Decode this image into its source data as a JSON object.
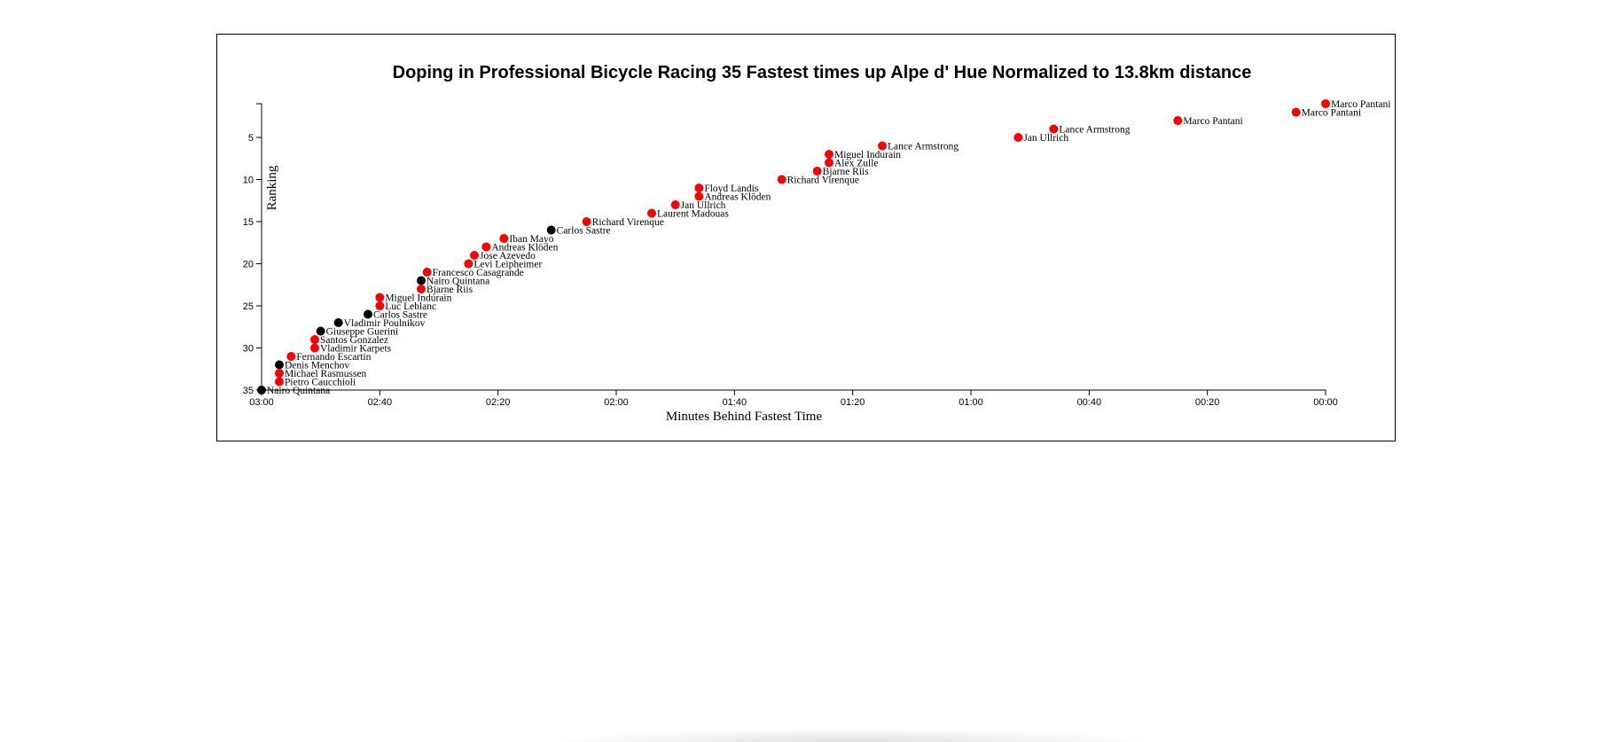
{
  "chart_data": {
    "type": "scatter",
    "title": "Doping in Professional Bicycle Racing 35 Fastest times up Alpe d' Hue Normalized to 13.8km distance",
    "xlabel": "Minutes Behind Fastest Time",
    "ylabel": "Ranking",
    "x_unit": "seconds behind fastest time",
    "xlim": [
      180,
      0
    ],
    "ylim": [
      1,
      35
    ],
    "x_ticks": [
      {
        "value": 180,
        "label": "03:00"
      },
      {
        "value": 160,
        "label": "02:40"
      },
      {
        "value": 140,
        "label": "02:20"
      },
      {
        "value": 120,
        "label": "02:00"
      },
      {
        "value": 100,
        "label": "01:40"
      },
      {
        "value": 80,
        "label": "01:20"
      },
      {
        "value": 60,
        "label": "01:00"
      },
      {
        "value": 40,
        "label": "00:40"
      },
      {
        "value": 20,
        "label": "00:20"
      },
      {
        "value": 0,
        "label": "00:00"
      }
    ],
    "y_ticks": [
      5,
      10,
      15,
      20,
      25,
      30,
      35
    ],
    "colors": {
      "doping": "#ff0000",
      "no_doping": "#000000"
    },
    "points": [
      {
        "rank": 1,
        "seconds_behind": 0,
        "name": "Marco Pantani",
        "doping": true
      },
      {
        "rank": 2,
        "seconds_behind": 5,
        "name": "Marco Pantani",
        "doping": true
      },
      {
        "rank": 3,
        "seconds_behind": 25,
        "name": "Marco Pantani",
        "doping": true
      },
      {
        "rank": 4,
        "seconds_behind": 46,
        "name": "Lance Armstrong",
        "doping": true
      },
      {
        "rank": 5,
        "seconds_behind": 52,
        "name": "Jan Ullrich",
        "doping": true
      },
      {
        "rank": 6,
        "seconds_behind": 75,
        "name": "Lance Armstrong",
        "doping": true
      },
      {
        "rank": 7,
        "seconds_behind": 84,
        "name": "Miguel Indurain",
        "doping": true
      },
      {
        "rank": 8,
        "seconds_behind": 84,
        "name": "Alex Zulle",
        "doping": true
      },
      {
        "rank": 9,
        "seconds_behind": 86,
        "name": "Bjarne Riis",
        "doping": true
      },
      {
        "rank": 10,
        "seconds_behind": 92,
        "name": "Richard Virenque",
        "doping": true
      },
      {
        "rank": 11,
        "seconds_behind": 106,
        "name": "Floyd Landis",
        "doping": true
      },
      {
        "rank": 12,
        "seconds_behind": 106,
        "name": "Andreas Klöden",
        "doping": true
      },
      {
        "rank": 13,
        "seconds_behind": 110,
        "name": "Jan Ullrich",
        "doping": true
      },
      {
        "rank": 14,
        "seconds_behind": 114,
        "name": "Laurent Madouas",
        "doping": true
      },
      {
        "rank": 15,
        "seconds_behind": 125,
        "name": "Richard Virenque",
        "doping": true
      },
      {
        "rank": 16,
        "seconds_behind": 131,
        "name": "Carlos Sastre",
        "doping": false
      },
      {
        "rank": 17,
        "seconds_behind": 139,
        "name": "Iban Mayo",
        "doping": true
      },
      {
        "rank": 18,
        "seconds_behind": 142,
        "name": "Andreas Klöden",
        "doping": true
      },
      {
        "rank": 19,
        "seconds_behind": 144,
        "name": "Jose Azevedo",
        "doping": true
      },
      {
        "rank": 20,
        "seconds_behind": 145,
        "name": "Levi Leipheimer",
        "doping": true
      },
      {
        "rank": 21,
        "seconds_behind": 152,
        "name": "Francesco Casagrande",
        "doping": true
      },
      {
        "rank": 22,
        "seconds_behind": 153,
        "name": "Nairo Quintana",
        "doping": false
      },
      {
        "rank": 23,
        "seconds_behind": 153,
        "name": "Bjarne Riis",
        "doping": true
      },
      {
        "rank": 24,
        "seconds_behind": 160,
        "name": "Miguel Indurain",
        "doping": true
      },
      {
        "rank": 25,
        "seconds_behind": 160,
        "name": "Luc Leblanc",
        "doping": true
      },
      {
        "rank": 26,
        "seconds_behind": 162,
        "name": "Carlos Sastre",
        "doping": false
      },
      {
        "rank": 27,
        "seconds_behind": 167,
        "name": "Vladimir Poulnikov",
        "doping": false
      },
      {
        "rank": 28,
        "seconds_behind": 170,
        "name": "Giuseppe Guerini",
        "doping": false
      },
      {
        "rank": 29,
        "seconds_behind": 171,
        "name": "Santos Gonzalez",
        "doping": true
      },
      {
        "rank": 30,
        "seconds_behind": 171,
        "name": "Vladimir Karpets",
        "doping": true
      },
      {
        "rank": 31,
        "seconds_behind": 175,
        "name": "Fernando Escartin",
        "doping": true
      },
      {
        "rank": 32,
        "seconds_behind": 177,
        "name": "Denis Menchov",
        "doping": false
      },
      {
        "rank": 33,
        "seconds_behind": 177,
        "name": "Michael Rasmussen",
        "doping": true
      },
      {
        "rank": 34,
        "seconds_behind": 177,
        "name": "Pietro Caucchioli",
        "doping": true
      },
      {
        "rank": 35,
        "seconds_behind": 180,
        "name": "Nairo Quintana",
        "doping": false
      }
    ]
  }
}
